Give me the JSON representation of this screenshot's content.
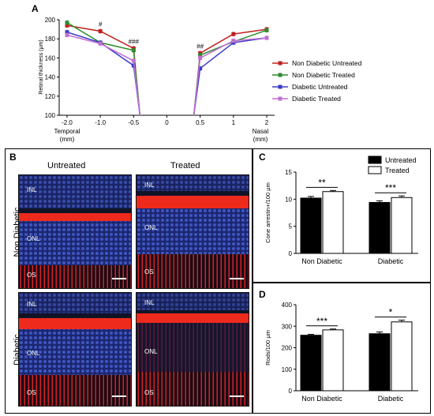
{
  "panel_a": {
    "letter": "A",
    "chart_data": {
      "type": "line",
      "x": [
        -2.0,
        -1.0,
        -0.5,
        0.5,
        1,
        2
      ],
      "x_tick_labels": [
        "-2.0",
        "-1.0",
        "-0.5",
        "0",
        "0.5",
        "1",
        "2"
      ],
      "x_tick_values": [
        -2.0,
        -1.0,
        -0.5,
        0,
        0.5,
        1,
        2
      ],
      "x_end_labels": {
        "left_line1": "Temporal",
        "left_line2": "(mm)",
        "right_line1": "Nasal",
        "right_line2": "(mm)"
      },
      "ylabel": "Retinal thickness (μm)",
      "ylim": [
        100,
        200
      ],
      "y_ticks": [
        100,
        120,
        140,
        160,
        180,
        200
      ],
      "series": [
        {
          "name": "Non Diabetic Untreated",
          "color": "#c0201e",
          "values": [
            194,
            188,
            170,
            165,
            185,
            190
          ]
        },
        {
          "name": "Non Diabetic Treated",
          "color": "#2e8b2e",
          "values": [
            197,
            176,
            168,
            163,
            177,
            189
          ]
        },
        {
          "name": "Diabetic Untreated",
          "color": "#3b3bc8",
          "values": [
            187,
            176,
            152,
            149,
            176,
            181
          ]
        },
        {
          "name": "Diabetic Treated",
          "color": "#c070d0",
          "values": [
            184,
            175,
            157,
            160,
            178,
            181
          ]
        }
      ],
      "annotations": [
        {
          "text": "#",
          "x": -1.0,
          "y": 193
        },
        {
          "text": "###",
          "x": -0.5,
          "y": 175
        },
        {
          "text": "##",
          "x": 0.5,
          "y": 170
        }
      ],
      "legend_position": "right"
    }
  },
  "panel_b": {
    "letter": "B",
    "col_untreated": "Untreated",
    "col_treated": "Treated",
    "row_nondiabetic": "Non Diabetic",
    "row_diabetic": "Diabetic",
    "layer_inl": "INL",
    "layer_onl": "ONL",
    "layer_os": "OS"
  },
  "panel_c": {
    "letter": "C",
    "chart_data": {
      "type": "bar",
      "categories": [
        "Non Diabetic",
        "Diabetic"
      ],
      "series": [
        {
          "name": "Untreated",
          "color": "#000000",
          "values": [
            10.2,
            9.4
          ],
          "errors": [
            0.3,
            0.3
          ]
        },
        {
          "name": "Treated",
          "color": "#ffffff",
          "values": [
            11.4,
            10.3
          ],
          "errors": [
            0.2,
            0.3
          ]
        }
      ],
      "ylabel": "Cone arrestin+/100 μm",
      "ylim": [
        0,
        15
      ],
      "y_ticks": [
        0,
        5,
        10,
        15
      ],
      "significance": [
        "**",
        "***"
      ],
      "legend_position": "top-right"
    }
  },
  "panel_d": {
    "letter": "D",
    "chart_data": {
      "type": "bar",
      "categories": [
        "Non Diabetic",
        "Diabetic"
      ],
      "series": [
        {
          "name": "Untreated",
          "color": "#000000",
          "values": [
            258,
            265
          ],
          "errors": [
            4,
            8
          ]
        },
        {
          "name": "Treated",
          "color": "#ffffff",
          "values": [
            283,
            320
          ],
          "errors": [
            4,
            8
          ]
        }
      ],
      "ylabel": "Rods/100 μm",
      "ylim": [
        0,
        400
      ],
      "y_ticks": [
        0,
        100,
        200,
        300,
        400
      ],
      "significance": [
        "***",
        "*"
      ]
    }
  }
}
